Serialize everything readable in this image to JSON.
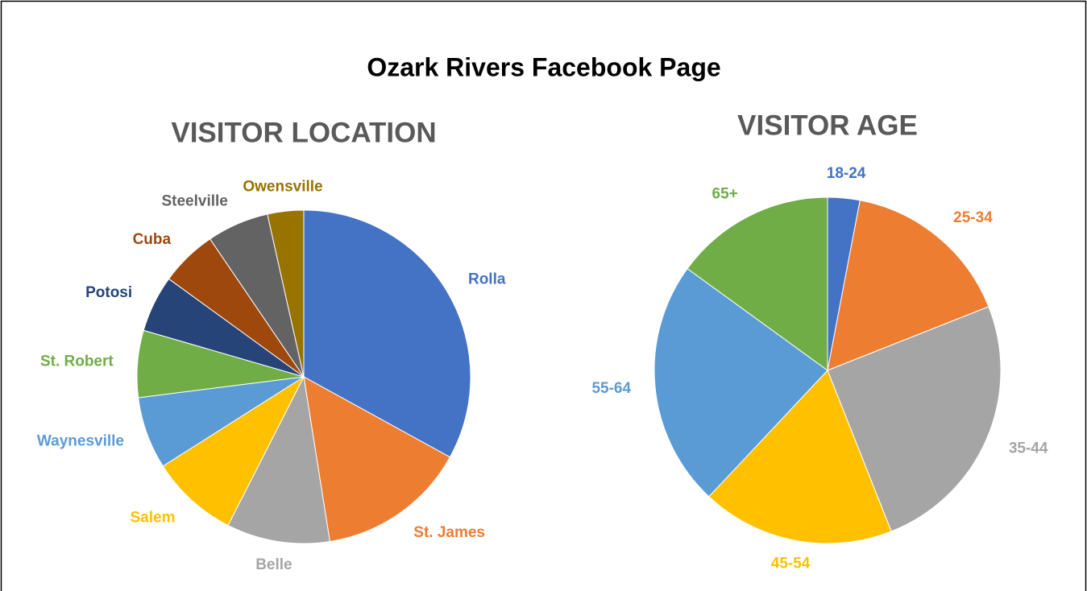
{
  "title": "Ozark Rivers Facebook Page",
  "chart_data": [
    {
      "type": "pie",
      "title": "VISITOR LOCATION",
      "categories": [
        "Rolla",
        "St. James",
        "Belle",
        "Salem",
        "Waynesville",
        "St. Robert",
        "Potosi",
        "Cuba",
        "Steelville",
        "Owensville"
      ],
      "values": [
        33,
        14.5,
        10,
        8.5,
        7,
        6.5,
        5.5,
        5.5,
        6,
        3.5
      ],
      "colors": [
        "#4472c4",
        "#ed7d31",
        "#a5a5a5",
        "#ffc000",
        "#5b9bd5",
        "#70ad47",
        "#264478",
        "#9e480e",
        "#636363",
        "#997300"
      ]
    },
    {
      "type": "pie",
      "title": "VISITOR AGE",
      "categories": [
        "18-24",
        "25-34",
        "35-44",
        "45-54",
        "55-64",
        "65+"
      ],
      "values": [
        3,
        16,
        25,
        18,
        23,
        15
      ],
      "colors": [
        "#4472c4",
        "#ed7d31",
        "#a5a5a5",
        "#ffc000",
        "#5b9bd5",
        "#70ad47"
      ]
    }
  ]
}
